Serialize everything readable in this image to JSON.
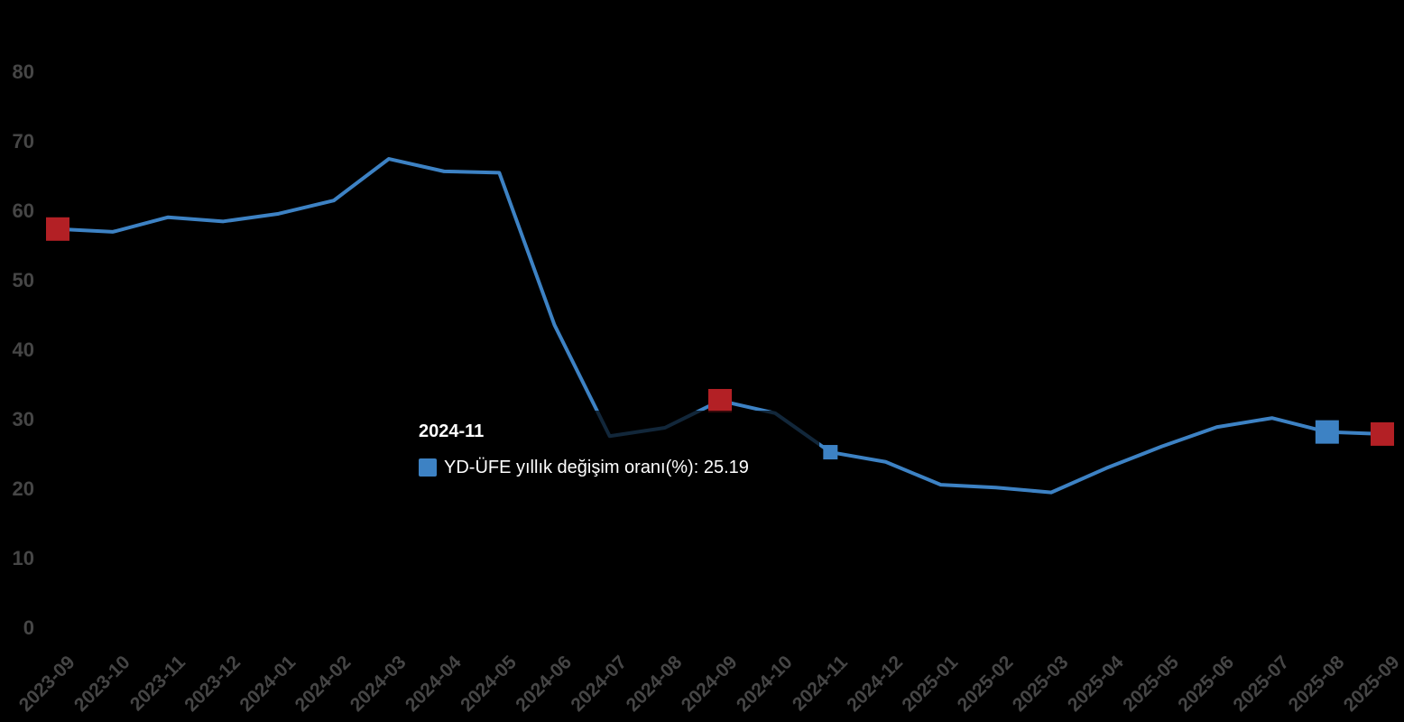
{
  "chart_data": {
    "type": "line",
    "title": "",
    "x": [
      "2023-09",
      "2023-10",
      "2023-11",
      "2023-12",
      "2024-01",
      "2024-02",
      "2024-03",
      "2024-04",
      "2024-05",
      "2024-06",
      "2024-07",
      "2024-08",
      "2024-09",
      "2024-10",
      "2024-11",
      "2024-12",
      "2025-01",
      "2025-02",
      "2025-03",
      "2025-04",
      "2025-05",
      "2025-06",
      "2025-07",
      "2025-08",
      "2025-09"
    ],
    "series": [
      {
        "name": "YD-ÜFE yıllık değişim oranı(%)",
        "color": "#3d82c4",
        "values": [
          57.3,
          56.9,
          59.0,
          58.4,
          59.5,
          61.4,
          67.4,
          65.6,
          65.4,
          43.5,
          27.5,
          28.7,
          32.6,
          30.8,
          25.19,
          23.8,
          20.5,
          20.1,
          19.4,
          22.9,
          26.0,
          28.8,
          30.1,
          28.1,
          27.8
        ]
      }
    ],
    "ylim": [
      0,
      80
    ],
    "y_ticks": [
      0,
      10,
      20,
      30,
      40,
      50,
      60,
      70,
      80
    ],
    "grid": false,
    "legend_position": "none",
    "background_color": "#000000",
    "axis_label_color": "#464646",
    "markers": [
      {
        "x": "2023-09",
        "color": "#b32025",
        "size": 26
      },
      {
        "x": "2024-09",
        "color": "#b32025",
        "size": 26
      },
      {
        "x": "2024-11",
        "color": "#3d82c4",
        "size": 16
      },
      {
        "x": "2025-08",
        "color": "#3d82c4",
        "size": 26
      },
      {
        "x": "2025-09",
        "color": "#b32025",
        "size": 26
      }
    ],
    "hovered_point": "2024-11"
  },
  "tooltip": {
    "title": "2024-11",
    "series_label": "YD-ÜFE yıllık değişim oranı(%)",
    "colon": ": ",
    "value": "25.19",
    "marker_color": "#3d82c4"
  }
}
